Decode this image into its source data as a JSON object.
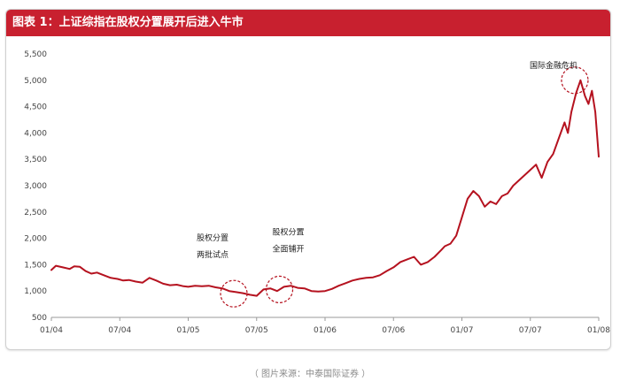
{
  "title": "图表 1：上证综指在股权分置展开后进入牛市",
  "caption": "（ 图片来源：中泰国际证券 ）",
  "colors": {
    "accent": "#c8202f",
    "line": "#b5121f",
    "circle": "#b5121f",
    "axis": "#9a9a9a"
  },
  "chart_data": {
    "type": "line",
    "title": "图表 1：上证综指在股权分置展开后进入牛市",
    "xlabel": "",
    "ylabel": "",
    "ylim": [
      500,
      5500
    ],
    "yticks": [
      500,
      1000,
      1500,
      2000,
      2500,
      3000,
      3500,
      4000,
      4500,
      5000,
      5500
    ],
    "ytick_labels": [
      "500",
      "1,000",
      "1,500",
      "2,000",
      "2,500",
      "3,000",
      "3,500",
      "4,000",
      "4,500",
      "5,000",
      "5,500"
    ],
    "xlim": [
      0,
      48
    ],
    "xticks": [
      0,
      6,
      12,
      18,
      24,
      30,
      36,
      42,
      48
    ],
    "xtick_labels": [
      "01/04",
      "07/04",
      "01/05",
      "07/05",
      "01/06",
      "07/06",
      "01/07",
      "07/07",
      "01/08"
    ],
    "grid": false,
    "legend": "none",
    "series": [
      {
        "x": [
          0,
          0.4,
          1.0,
          1.6,
          2.0,
          2.5,
          3.0,
          3.5,
          4.0,
          4.6,
          5.2,
          5.8,
          6.3,
          6.8,
          7.4,
          8.0,
          8.6,
          9.2,
          9.8,
          10.4,
          11.0,
          11.6,
          12.0,
          12.6,
          13.2,
          13.8,
          14.4,
          15.0,
          15.6,
          16.2,
          16.8,
          17.4,
          18.0,
          18.6,
          19.2,
          19.8,
          20.4,
          21.0,
          21.6,
          22.2,
          22.8,
          23.4,
          24.0,
          24.6,
          25.2,
          25.8,
          26.4,
          27.0,
          27.6,
          28.2,
          28.8,
          29.4,
          30.0,
          30.6,
          31.2,
          31.8,
          32.4,
          33.0,
          33.6,
          34.2,
          34.5,
          35.0,
          35.5,
          36.0,
          36.5,
          37.0,
          37.5,
          38.0,
          38.5,
          39.0,
          39.5,
          40.0,
          40.5,
          41.0,
          41.5,
          42.0,
          42.5,
          43.0,
          43.5,
          44.0,
          44.5,
          45.0,
          45.3,
          45.6,
          46.0,
          46.4,
          46.8,
          47.1,
          47.4,
          47.7,
          48.0
        ],
        "values": [
          1400,
          1480,
          1450,
          1420,
          1470,
          1460,
          1380,
          1330,
          1350,
          1300,
          1250,
          1230,
          1200,
          1210,
          1180,
          1160,
          1250,
          1200,
          1140,
          1110,
          1120,
          1090,
          1080,
          1100,
          1090,
          1100,
          1070,
          1050,
          1000,
          980,
          960,
          930,
          910,
          1030,
          1050,
          1000,
          1080,
          1100,
          1060,
          1050,
          1000,
          990,
          1000,
          1040,
          1100,
          1150,
          1200,
          1230,
          1250,
          1260,
          1300,
          1380,
          1450,
          1550,
          1600,
          1650,
          1500,
          1550,
          1650,
          1780,
          1850,
          1900,
          2050,
          2400,
          2750,
          2900,
          2800,
          2600,
          2700,
          2650,
          2800,
          2850,
          3000,
          3100,
          3200,
          3300,
          3400,
          3150,
          3450,
          3600,
          3900,
          4200,
          4000,
          4400,
          4750,
          5000,
          4700,
          4550,
          4800,
          4400,
          3550
        ]
      }
    ],
    "annotations": [
      {
        "lines": [
          "股权分置",
          "两批试点"
        ],
        "circle_at": {
          "x": 16.0,
          "y": 950
        }
      },
      {
        "lines": [
          "股权分置",
          "全面铺开"
        ],
        "circle_at": {
          "x": 20.0,
          "y": 1030
        }
      },
      {
        "lines": [
          "国际金融危机"
        ],
        "circle_at": {
          "x": 45.9,
          "y": 5000
        }
      }
    ]
  }
}
